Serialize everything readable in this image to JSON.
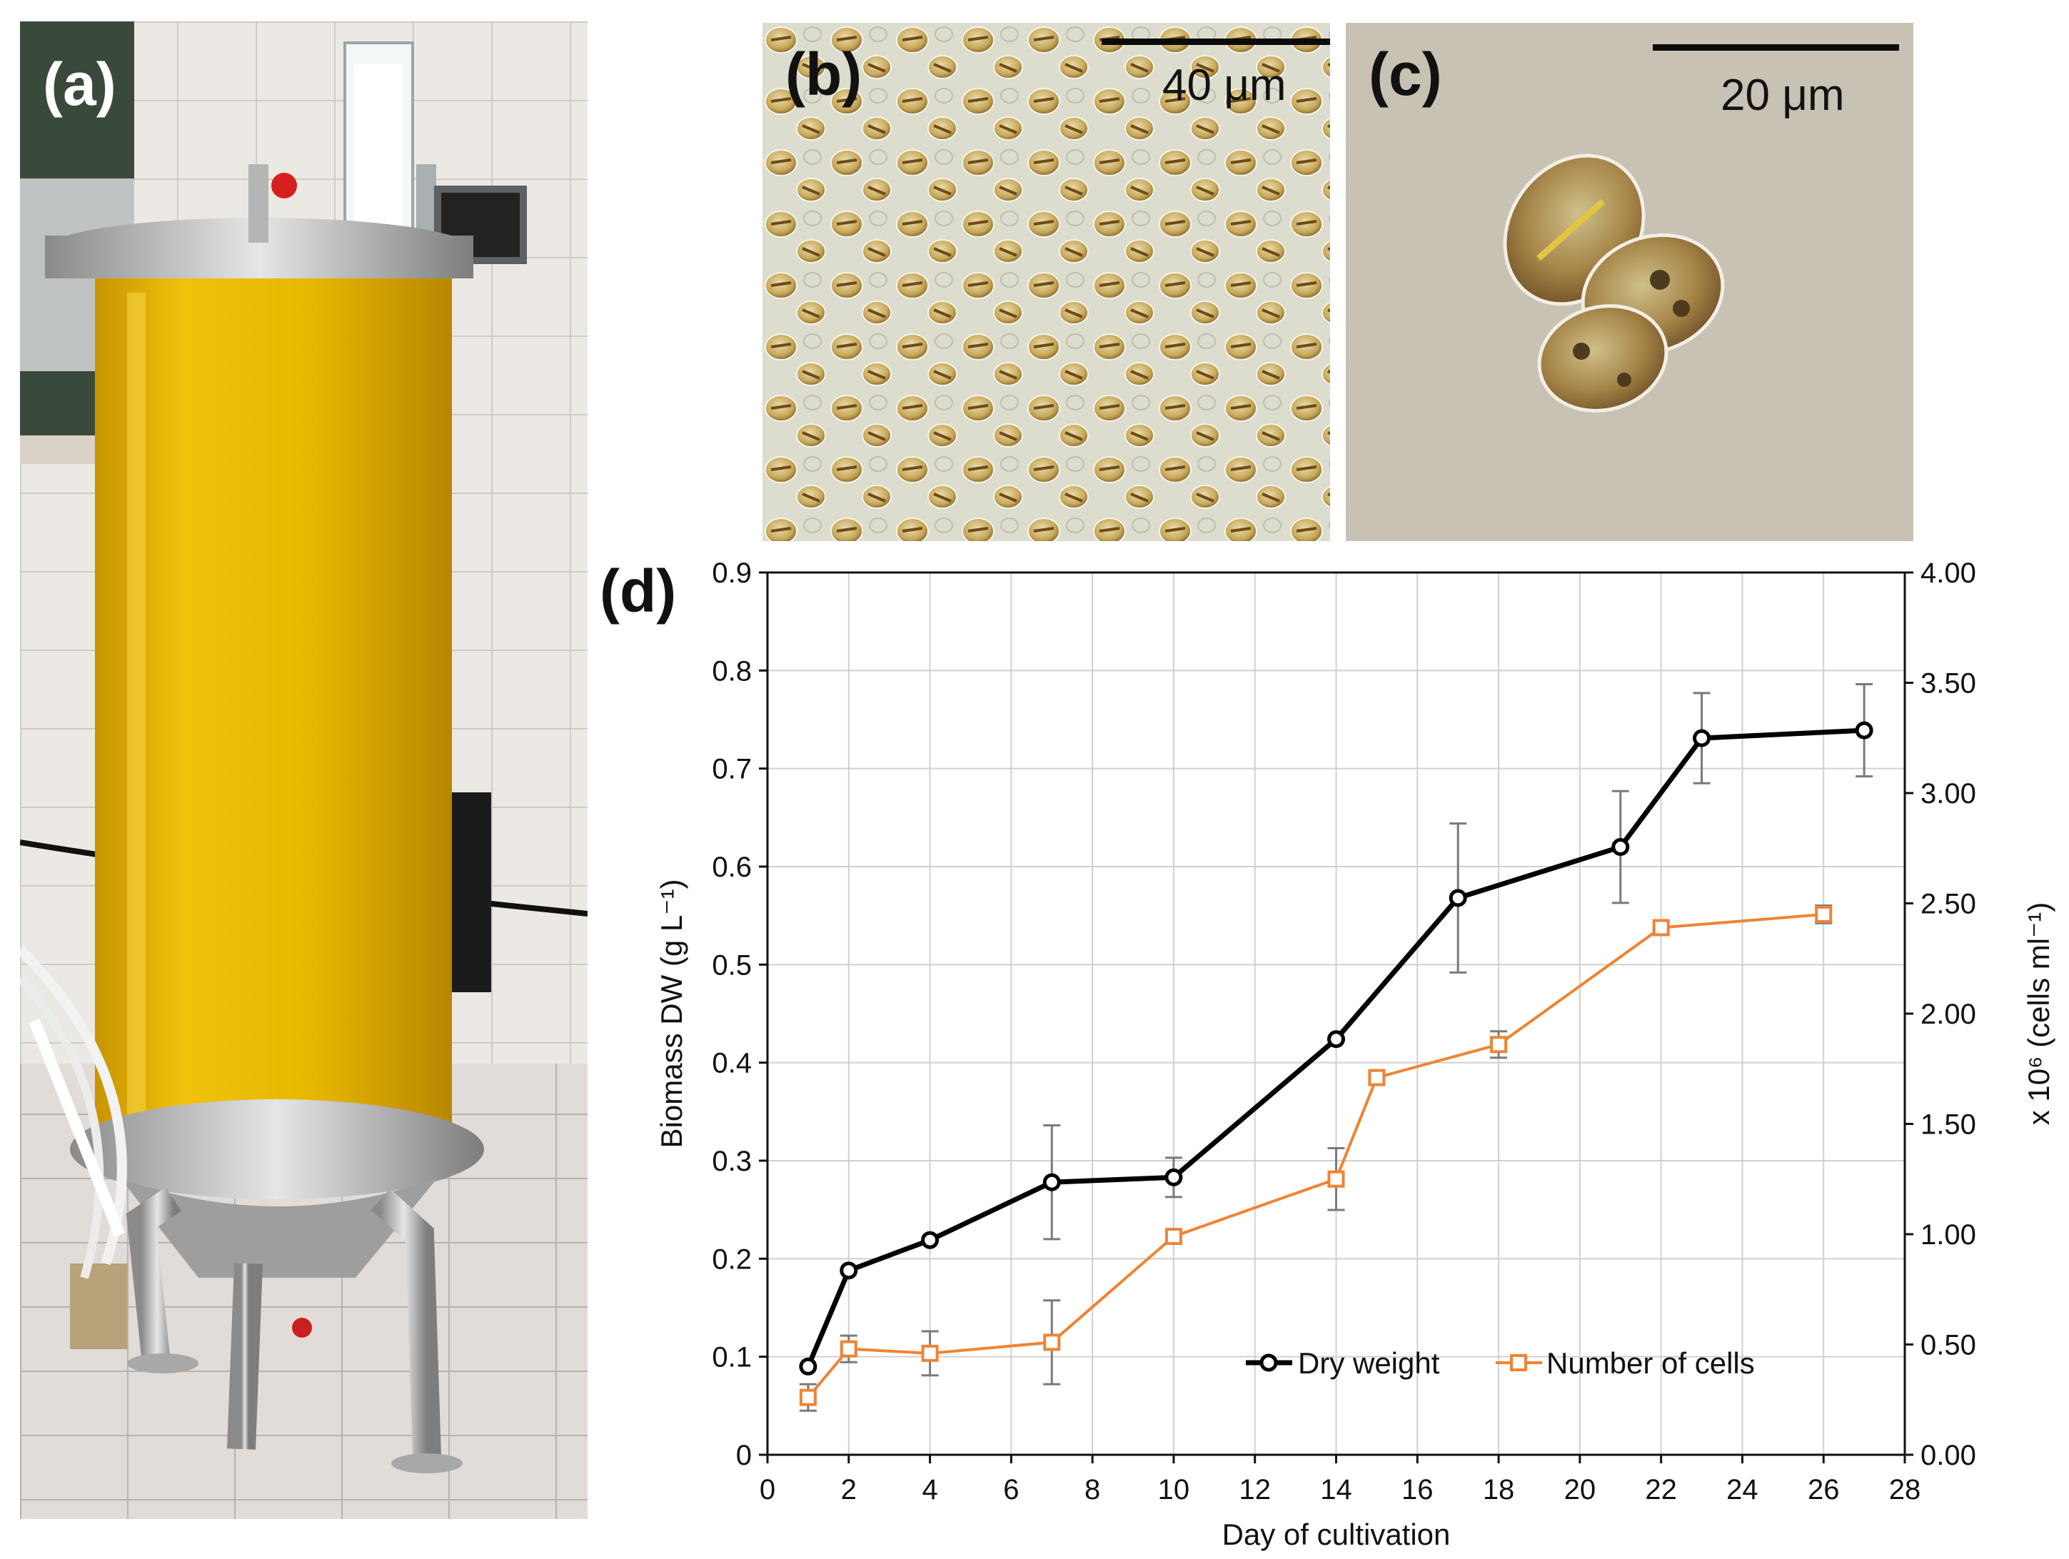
{
  "panels": {
    "a": {
      "label": "(a)"
    },
    "b": {
      "label": "(b)",
      "scale_bar": "40 μm"
    },
    "c": {
      "label": "(c)",
      "scale_bar": "20 μm"
    },
    "d": {
      "label": "(d)"
    }
  },
  "colors": {
    "dry_weight": "#000000",
    "number_of_cells": "#EE8434",
    "grid": "#d0d0d0"
  },
  "chart_data": {
    "type": "line",
    "xlabel": "Day of cultivation",
    "ylabel": "Biomass DW (g L⁻¹)",
    "ylabel_right": "x 10⁶ (cells ml⁻¹)",
    "xlim": [
      0,
      28
    ],
    "ylim": [
      0,
      0.9
    ],
    "ylim_right": [
      0,
      4.0
    ],
    "x_ticks": [
      "0",
      "2",
      "4",
      "6",
      "8",
      "10",
      "12",
      "14",
      "16",
      "18",
      "20",
      "22",
      "24",
      "26",
      "28"
    ],
    "y_ticks": [
      "0",
      "0.1",
      "0.2",
      "0.3",
      "0.4",
      "0.5",
      "0.6",
      "0.7",
      "0.8",
      "0.9"
    ],
    "y_ticks_right": [
      "0.00",
      "0.50",
      "1.00",
      "1.50",
      "2.00",
      "2.50",
      "3.00",
      "3.50",
      "4.00"
    ],
    "grid": true,
    "legend_position": "bottom-right",
    "series": [
      {
        "name": "Dry weight",
        "axis": "left",
        "marker": "circle",
        "color": "#000000",
        "x": [
          1,
          2,
          4,
          7,
          10,
          14,
          17,
          21,
          23,
          27
        ],
        "y": [
          0.09,
          0.188,
          0.219,
          0.278,
          0.283,
          0.424,
          0.568,
          0.62,
          0.731,
          0.739
        ],
        "error": [
          0.0,
          0.0,
          0.0,
          0.058,
          0.02,
          0.0,
          0.076,
          0.057,
          0.046,
          0.047
        ]
      },
      {
        "name": "Number of cells",
        "axis": "right",
        "marker": "square",
        "color": "#EE8434",
        "x": [
          1,
          2,
          4,
          7,
          10,
          14,
          15,
          18,
          22,
          26
        ],
        "y": [
          0.26,
          0.48,
          0.46,
          0.51,
          0.99,
          1.25,
          1.71,
          1.86,
          2.39,
          2.45
        ],
        "error": [
          0.06,
          0.06,
          0.1,
          0.19,
          0.0,
          0.14,
          0.0,
          0.06,
          0.0,
          0.04
        ]
      }
    ]
  }
}
